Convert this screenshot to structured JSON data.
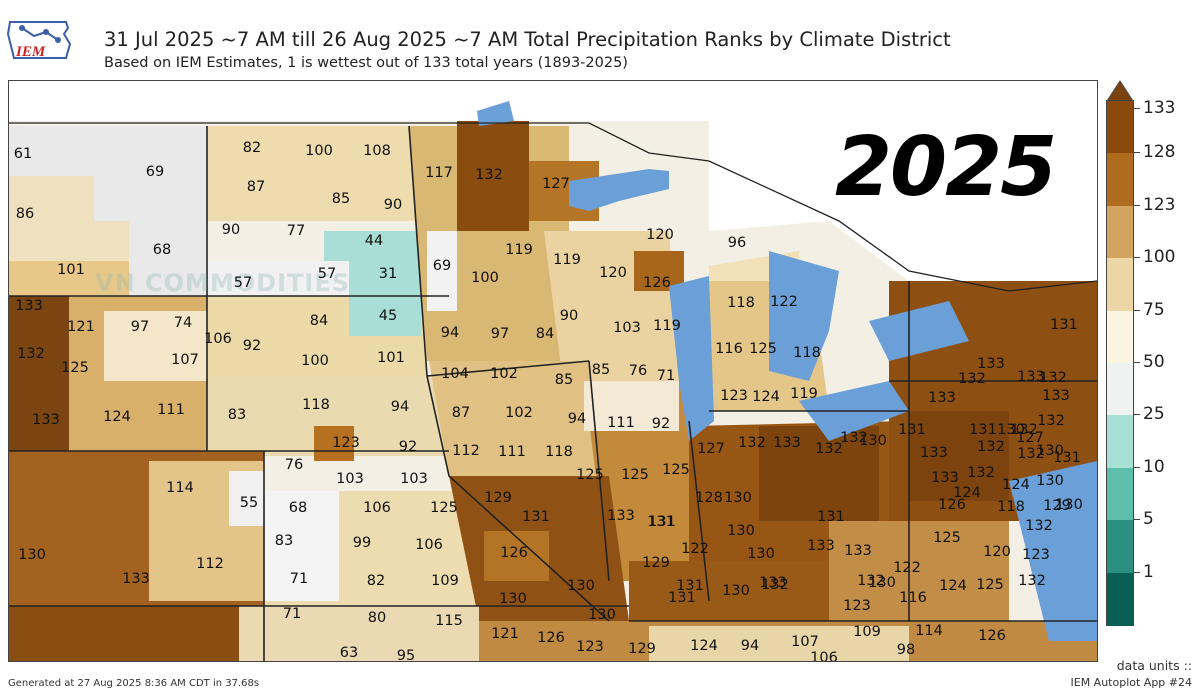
{
  "header": {
    "logo_text": "IEM",
    "title": "31 Jul 2025 ~7 AM till 26 Aug 2025 ~7 AM Total Precipitation Ranks by Climate District",
    "subtitle": "Based on IEM Estimates, 1 is wettest out of 133 total years (1893-2025)"
  },
  "overlays": {
    "watermark": "VN COMMODITIES",
    "year_stamp": "2025"
  },
  "colorbar": {
    "ticks": [
      "133",
      "128",
      "123",
      "100",
      "75",
      "50",
      "25",
      "10",
      "5",
      "1"
    ],
    "colors": [
      "#8a4a0c",
      "#b06c1e",
      "#d2a45f",
      "#ecd6a6",
      "#fbf4e2",
      "#eef3f2",
      "#a8e0d6",
      "#5dbfaa",
      "#2a8f7e",
      "#0a5f55"
    ],
    "water_color": "#6a9fd8"
  },
  "districts": [
    {
      "rank": "61"
    },
    {
      "rank": "69"
    },
    {
      "rank": "86"
    },
    {
      "rank": "68"
    },
    {
      "rank": "101"
    },
    {
      "rank": "82"
    },
    {
      "rank": "100"
    },
    {
      "rank": "108"
    },
    {
      "rank": "87"
    },
    {
      "rank": "85"
    },
    {
      "rank": "90"
    },
    {
      "rank": "90"
    },
    {
      "rank": "77"
    },
    {
      "rank": "44"
    },
    {
      "rank": "57"
    },
    {
      "rank": "57"
    },
    {
      "rank": "31"
    },
    {
      "rank": "45"
    },
    {
      "rank": "117"
    },
    {
      "rank": "132"
    },
    {
      "rank": "127"
    },
    {
      "rank": "69"
    },
    {
      "rank": "100"
    },
    {
      "rank": "119"
    },
    {
      "rank": "119"
    },
    {
      "rank": "120"
    },
    {
      "rank": "120"
    },
    {
      "rank": "126"
    },
    {
      "rank": "96"
    },
    {
      "rank": "133"
    },
    {
      "rank": "121"
    },
    {
      "rank": "97"
    },
    {
      "rank": "74"
    },
    {
      "rank": "106"
    },
    {
      "rank": "92"
    },
    {
      "rank": "84"
    },
    {
      "rank": "132"
    },
    {
      "rank": "125"
    },
    {
      "rank": "107"
    },
    {
      "rank": "100"
    },
    {
      "rank": "101"
    },
    {
      "rank": "94"
    },
    {
      "rank": "97"
    },
    {
      "rank": "84"
    },
    {
      "rank": "90"
    },
    {
      "rank": "103"
    },
    {
      "rank": "119"
    },
    {
      "rank": "118"
    },
    {
      "rank": "122"
    },
    {
      "rank": "116"
    },
    {
      "rank": "125"
    },
    {
      "rank": "118"
    },
    {
      "rank": "133"
    },
    {
      "rank": "124"
    },
    {
      "rank": "111"
    },
    {
      "rank": "83"
    },
    {
      "rank": "118"
    },
    {
      "rank": "94"
    },
    {
      "rank": "87"
    },
    {
      "rank": "102"
    },
    {
      "rank": "104"
    },
    {
      "rank": "102"
    },
    {
      "rank": "85"
    },
    {
      "rank": "85"
    },
    {
      "rank": "76"
    },
    {
      "rank": "71"
    },
    {
      "rank": "123"
    },
    {
      "rank": "124"
    },
    {
      "rank": "119"
    },
    {
      "rank": "123"
    },
    {
      "rank": "92"
    },
    {
      "rank": "112"
    },
    {
      "rank": "111"
    },
    {
      "rank": "118"
    },
    {
      "rank": "94"
    },
    {
      "rank": "111"
    },
    {
      "rank": "92"
    },
    {
      "rank": "132"
    },
    {
      "rank": "133"
    },
    {
      "rank": "132"
    },
    {
      "rank": "132"
    },
    {
      "rank": "133"
    },
    {
      "rank": "132"
    },
    {
      "rank": "130"
    },
    {
      "rank": "130"
    },
    {
      "rank": "114"
    },
    {
      "rank": "55"
    },
    {
      "rank": "76"
    },
    {
      "rank": "103"
    },
    {
      "rank": "103"
    },
    {
      "rank": "125"
    },
    {
      "rank": "125"
    },
    {
      "rank": "125"
    },
    {
      "rank": "127"
    },
    {
      "rank": "132"
    },
    {
      "rank": "133"
    },
    {
      "rank": "130"
    },
    {
      "rank": "131"
    },
    {
      "rank": "131"
    },
    {
      "rank": "132"
    },
    {
      "rank": "132"
    },
    {
      "rank": "131"
    },
    {
      "rank": "132"
    },
    {
      "rank": "127"
    },
    {
      "rank": "131"
    },
    {
      "rank": "133"
    },
    {
      "rank": "133"
    },
    {
      "rank": "133"
    },
    {
      "rank": "133"
    },
    {
      "rank": "132"
    },
    {
      "rank": "124"
    },
    {
      "rank": "124"
    },
    {
      "rank": "130"
    },
    {
      "rank": "132"
    },
    {
      "rank": "68"
    },
    {
      "rank": "106"
    },
    {
      "rank": "125"
    },
    {
      "rank": "129"
    },
    {
      "rank": "128"
    },
    {
      "rank": "130"
    },
    {
      "rank": "131"
    },
    {
      "rank": "133"
    },
    {
      "rank": "131"
    },
    {
      "rank": "130"
    },
    {
      "rank": "126"
    },
    {
      "rank": "118"
    },
    {
      "rank": "129"
    },
    {
      "rank": "130"
    },
    {
      "rank": "132"
    },
    {
      "rank": "83"
    },
    {
      "rank": "99"
    },
    {
      "rank": "106"
    },
    {
      "rank": "126"
    },
    {
      "rank": "131"
    },
    {
      "rank": "131"
    },
    {
      "rank": "122"
    },
    {
      "rank": "130"
    },
    {
      "rank": "133"
    },
    {
      "rank": "133"
    },
    {
      "rank": "125"
    },
    {
      "rank": "120"
    },
    {
      "rank": "123"
    },
    {
      "rank": "130"
    },
    {
      "rank": "112"
    },
    {
      "rank": "71"
    },
    {
      "rank": "82"
    },
    {
      "rank": "109"
    },
    {
      "rank": "130"
    },
    {
      "rank": "131"
    },
    {
      "rank": "129"
    },
    {
      "rank": "130"
    },
    {
      "rank": "132"
    },
    {
      "rank": "132"
    },
    {
      "rank": "122"
    },
    {
      "rank": "116"
    },
    {
      "rank": "124"
    },
    {
      "rank": "125"
    },
    {
      "rank": "132"
    },
    {
      "rank": "123"
    },
    {
      "rank": "130"
    },
    {
      "rank": "130"
    },
    {
      "rank": "131"
    },
    {
      "rank": "133"
    },
    {
      "rank": "133"
    },
    {
      "rank": "130"
    },
    {
      "rank": "71"
    },
    {
      "rank": "80"
    },
    {
      "rank": "115"
    },
    {
      "rank": "121"
    },
    {
      "rank": "126"
    },
    {
      "rank": "123"
    },
    {
      "rank": "129"
    },
    {
      "rank": "124"
    },
    {
      "rank": "94"
    },
    {
      "rank": "107"
    },
    {
      "rank": "109"
    },
    {
      "rank": "114"
    },
    {
      "rank": "126"
    },
    {
      "rank": "98"
    },
    {
      "rank": "63"
    },
    {
      "rank": "95"
    },
    {
      "rank": "106"
    }
  ],
  "footer": {
    "generated": "Generated at 27 Aug 2025 8:36 AM CDT in 37.68s",
    "data_units": "data units ::",
    "app": "IEM Autoplot App #24"
  }
}
